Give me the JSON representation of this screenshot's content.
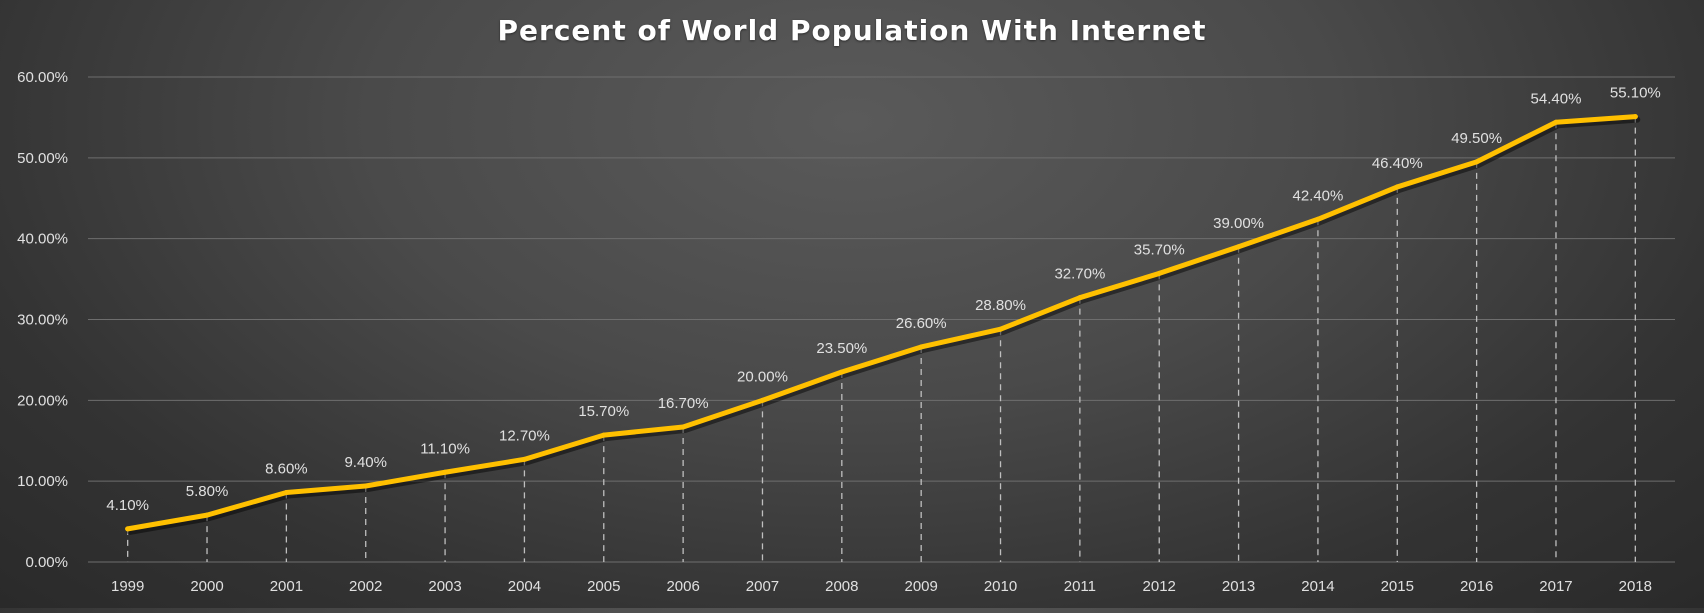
{
  "chart_data": {
    "type": "line",
    "title": "Percent of World Population With Internet",
    "categories": [
      "1999",
      "2000",
      "2001",
      "2002",
      "2003",
      "2004",
      "2005",
      "2006",
      "2007",
      "2008",
      "2009",
      "2010",
      "2011",
      "2012",
      "2013",
      "2014",
      "2015",
      "2016",
      "2017",
      "2018"
    ],
    "values": [
      4.1,
      5.8,
      8.6,
      9.4,
      11.1,
      12.7,
      15.7,
      16.7,
      20.0,
      23.5,
      26.6,
      28.8,
      32.7,
      35.7,
      39.0,
      42.4,
      46.4,
      49.5,
      54.4,
      55.1
    ],
    "data_labels": [
      "4.10%",
      "5.80%",
      "8.60%",
      "9.40%",
      "11.10%",
      "12.70%",
      "15.70%",
      "16.70%",
      "20.00%",
      "23.50%",
      "26.60%",
      "28.80%",
      "32.70%",
      "35.70%",
      "39.00%",
      "42.40%",
      "46.40%",
      "49.50%",
      "54.40%",
      "55.10%"
    ],
    "y_ticks": [
      0,
      10,
      20,
      30,
      40,
      50,
      60
    ],
    "y_tick_labels": [
      "0.00%",
      "10.00%",
      "20.00%",
      "30.00%",
      "40.00%",
      "50.00%",
      "60.00%"
    ],
    "ylim": [
      0,
      60
    ],
    "xlabel": "",
    "ylabel": "",
    "grid": true,
    "drop_lines": true,
    "legend": "none",
    "colors": {
      "line": "#FFC000",
      "grid": "#6e6e6e",
      "text": "#e0e0e0",
      "drop_line": "#bfbfbf"
    }
  }
}
